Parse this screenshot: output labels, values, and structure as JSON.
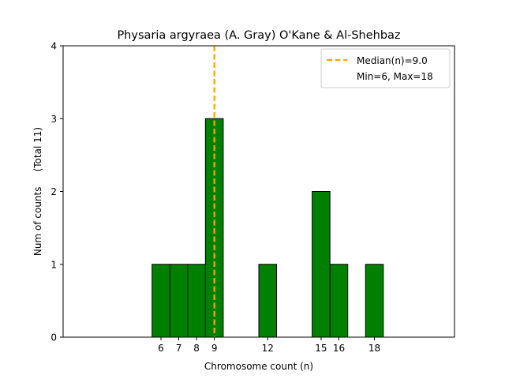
{
  "chart_data": {
    "type": "bar",
    "title": "Physaria argyraea (A. Gray) O'Kane & Al-Shehbaz",
    "xlabel": "Chromosome count (n)",
    "ylabel": "Num of counts     (Total 11)",
    "x": [
      6,
      7,
      8,
      9,
      12,
      15,
      16,
      18
    ],
    "values": [
      1,
      1,
      1,
      3,
      1,
      2,
      1,
      1
    ],
    "bar_width": 1,
    "xlim": [
      0.5,
      22.5
    ],
    "ylim": [
      0,
      4
    ],
    "xticks": [
      6,
      7,
      8,
      9,
      12,
      15,
      16,
      18
    ],
    "yticks": [
      0,
      1,
      2,
      3,
      4
    ],
    "bar_color": "#008000",
    "bar_edge_color": "#000000",
    "median": {
      "value": 9.0,
      "color": "#ffa500"
    },
    "legend": {
      "placement": "top-right",
      "entries": [
        "Median(n)=9.0",
        "Min=6, Max=18"
      ]
    },
    "grid": false
  }
}
